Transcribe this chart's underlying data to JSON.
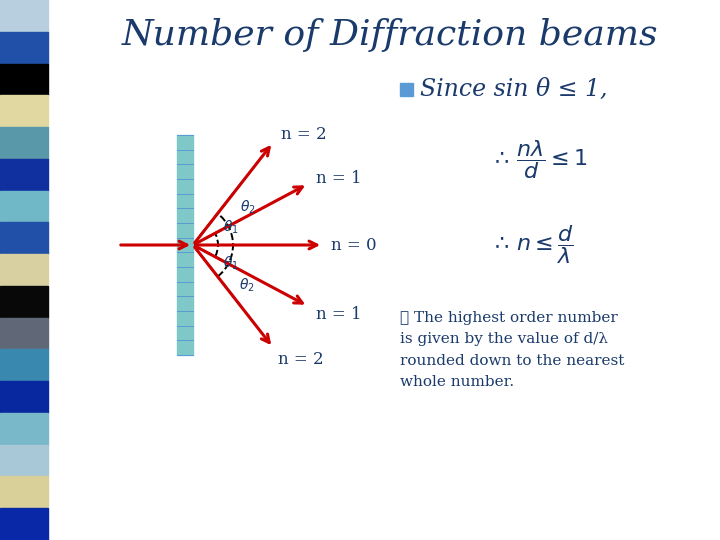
{
  "title": "Number of Diffraction beams",
  "title_color": "#1a3a6b",
  "title_fontsize": 26,
  "bg_color": "#ffffff",
  "bullet_color": "#5b9bd5",
  "since_text": "Since sin θ ≤ 1,",
  "since_fontsize": 17,
  "text_color": "#1a3a6b",
  "formula1_parts": [
    "\\therefore \\frac{n\\lambda}{d} \\leq 1"
  ],
  "formula2_parts": [
    "\\therefore n \\leq \\frac{d}{\\lambda}"
  ],
  "conclusion": "∴ The highest order number\nis given by the value of d/λ\nrounded down to the nearest\nwhole number.",
  "beam_labels": [
    "n = 2",
    "n = 1",
    "n = 0",
    "n = 1",
    "n = 2"
  ],
  "arrow_color": "#cc0000",
  "dashed_color": "#000000",
  "grating_color": "#7ec8c8",
  "grating_line_color": "#5b9bd5",
  "strip_colors": [
    "#b0c8e0",
    "#3060b0",
    "#000000",
    "#e8e0b0",
    "#70b0b8",
    "#1848a0",
    "#90c0d0",
    "#3060b0",
    "#e8e0b0",
    "#000000",
    "#888888",
    "#50a0c0",
    "#1848a0",
    "#90c0d0",
    "#c0d8e8",
    "#e8e0b0",
    "#1848a0"
  ]
}
